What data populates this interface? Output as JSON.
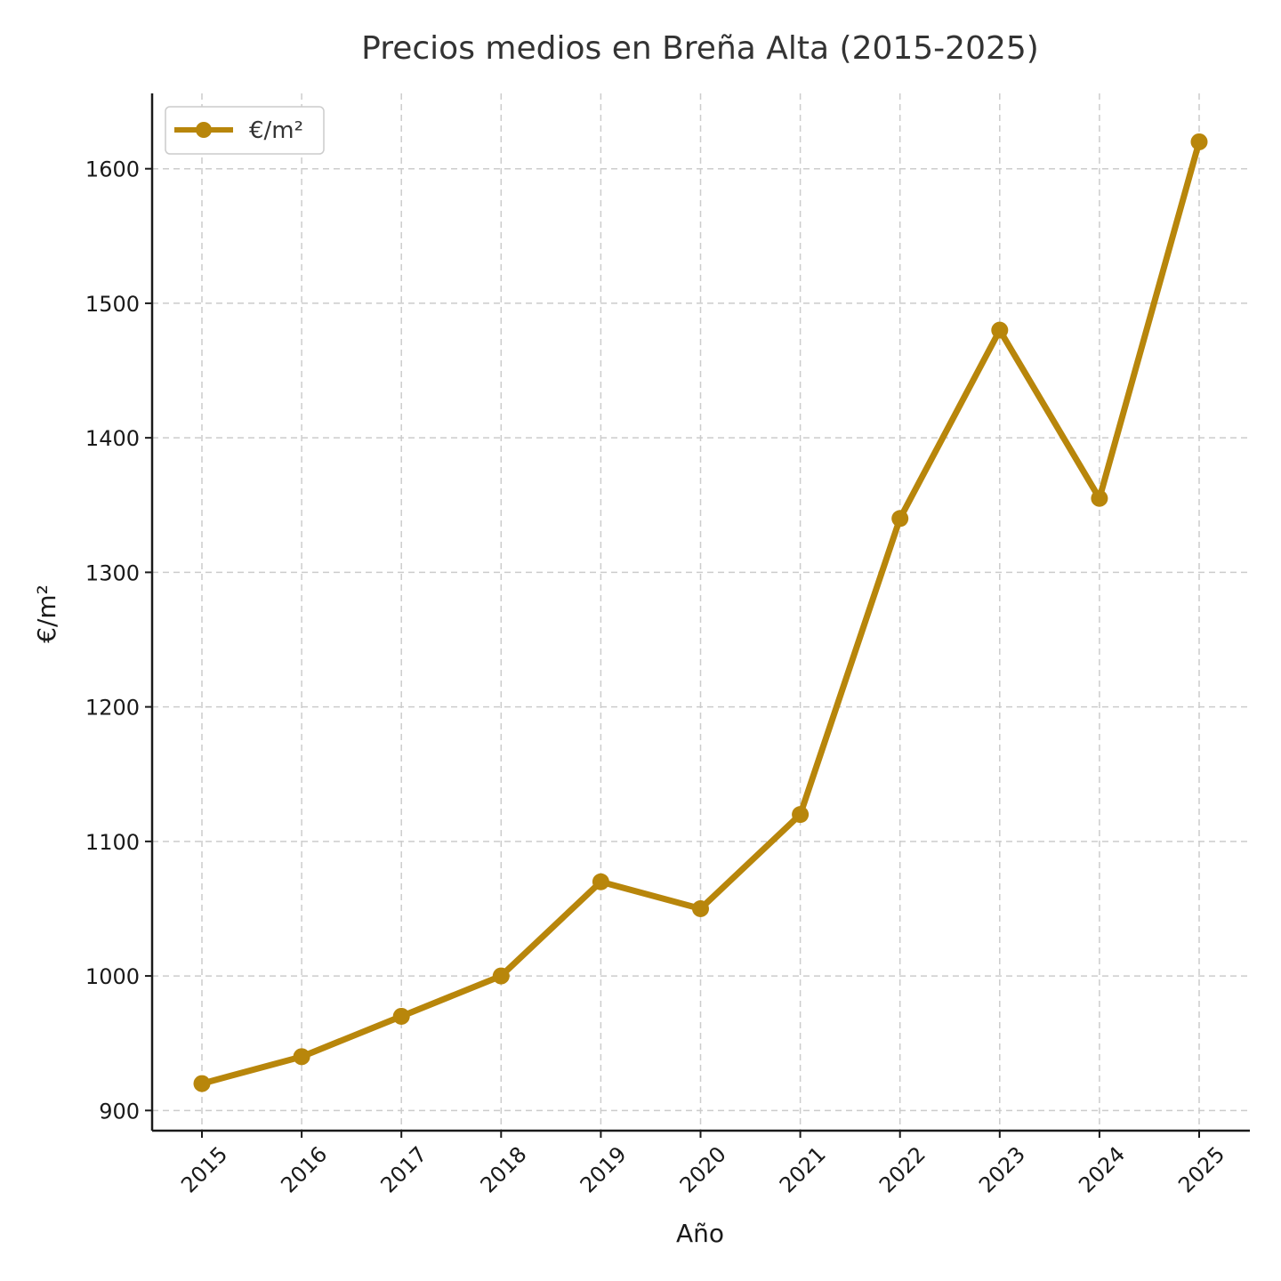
{
  "chart_data": {
    "type": "line",
    "title": "Precios medios en Breña Alta (2015-2025)",
    "xlabel": "Año",
    "ylabel": "€/m²",
    "x": [
      "2015",
      "2016",
      "2017",
      "2018",
      "2019",
      "2020",
      "2021",
      "2022",
      "2023",
      "2024",
      "2025"
    ],
    "series": [
      {
        "name": "€/m²",
        "color": "#b8860b",
        "marker": "circle",
        "values": [
          920,
          940,
          970,
          1000,
          1070,
          1050,
          1120,
          1340,
          1480,
          1355,
          1620
        ]
      }
    ],
    "yticks": [
      900,
      1000,
      1100,
      1200,
      1300,
      1400,
      1500,
      1600
    ],
    "ylim": [
      885,
      1656
    ],
    "grid": true,
    "legend": "top-left",
    "x_tick_rotation": 45
  }
}
